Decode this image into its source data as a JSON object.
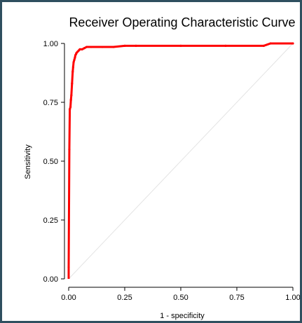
{
  "chart_data": {
    "type": "line",
    "title": "Receiver Operating Characteristic Curve",
    "xlabel": "1 - specificity",
    "ylabel": "Sensitivity",
    "xlim": [
      0,
      1
    ],
    "ylim": [
      0,
      1
    ],
    "x_ticks": [
      "0.00",
      "0.25",
      "0.50",
      "0.75",
      "1.00"
    ],
    "y_ticks": [
      "0.00",
      "0.25",
      "0.50",
      "0.75",
      "1.00"
    ],
    "grid": false,
    "reference_line": {
      "x": [
        0,
        1
      ],
      "y": [
        0,
        1
      ],
      "color": "#e3e3e3"
    },
    "series": [
      {
        "color": "#ff0000",
        "x": [
          0,
          0.003,
          0.005,
          0.008,
          0.01,
          0.012,
          0.015,
          0.018,
          0.02,
          0.022,
          0.025,
          0.028,
          0.03,
          0.033,
          0.035,
          0.04,
          0.045,
          0.05,
          0.06,
          0.07,
          0.08,
          0.1,
          0.15,
          0.2,
          0.25,
          0.3,
          0.5,
          0.7,
          0.87,
          0.9,
          1.0
        ],
        "y": [
          0.05,
          0.55,
          0.72,
          0.73,
          0.76,
          0.78,
          0.83,
          0.88,
          0.9,
          0.92,
          0.93,
          0.94,
          0.95,
          0.955,
          0.96,
          0.965,
          0.97,
          0.975,
          0.975,
          0.98,
          0.985,
          0.985,
          0.985,
          0.985,
          0.99,
          0.99,
          0.99,
          0.99,
          0.99,
          1.0,
          1.0
        ]
      }
    ]
  }
}
